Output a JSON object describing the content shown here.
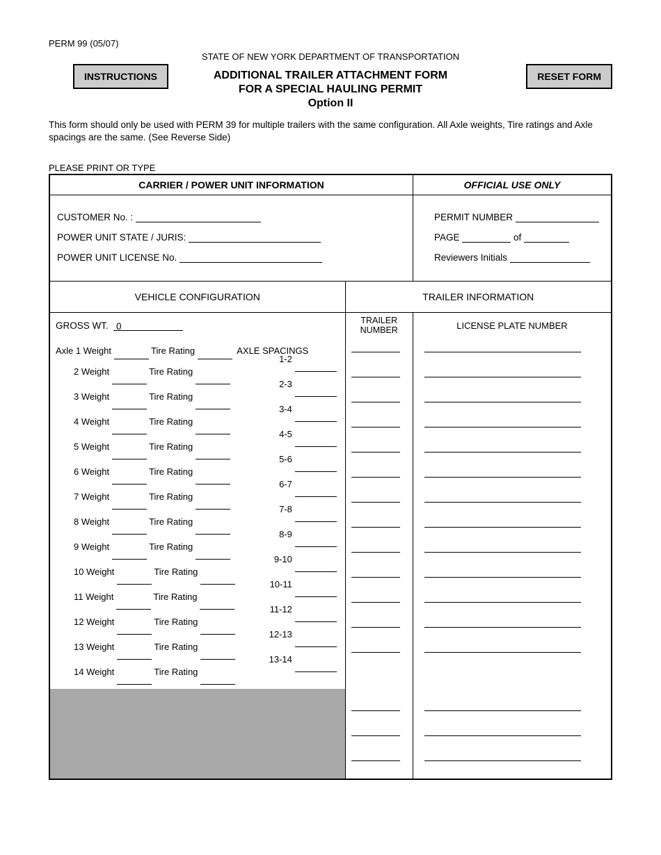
{
  "form_id": "PERM 99 (05/07)",
  "department": "STATE OF NEW YORK DEPARTMENT OF TRANSPORTATION",
  "buttons": {
    "instructions": "INSTRUCTIONS",
    "reset": "RESET FORM"
  },
  "title": {
    "line1": "ADDITIONAL TRAILER ATTACHMENT FORM",
    "line2": "FOR A SPECIAL HAULING PERMIT",
    "line3": "Option II"
  },
  "intro": "This form should only be used with PERM 39 for multiple trailers with the same configuration. All Axle weights, Tire ratings and Axle spacings are the same. (See Reverse Side)",
  "print_type": "PLEASE PRINT OR TYPE",
  "sections": {
    "carrier_header": "CARRIER / POWER UNIT INFORMATION",
    "official_header": "OFFICIAL USE ONLY",
    "vehicle_config": "VEHICLE CONFIGURATION",
    "trailer_info": "TRAILER INFORMATION",
    "trailer_number": "TRAILER NUMBER",
    "license_plate": "LICENSE PLATE NUMBER"
  },
  "carrier_fields": {
    "customer_no": "CUSTOMER No. :",
    "power_unit_state": "POWER UNIT STATE / JURIS:",
    "power_unit_license": "POWER UNIT LICENSE No."
  },
  "official_fields": {
    "permit_number": "PERMIT NUMBER",
    "page": "PAGE",
    "of": "of",
    "reviewers": "Reviewers Initials"
  },
  "gross_wt_label": "GROSS WT.",
  "gross_wt_value": "0",
  "axle_labels": {
    "axle1_prefix": "Axle 1 Weight",
    "tire_rating": "Tire Rating",
    "axle_spacings": "AXLE SPACINGS"
  },
  "axles": [
    {
      "n": "2",
      "spacing": "1-2"
    },
    {
      "n": "3",
      "spacing": "2-3"
    },
    {
      "n": "4",
      "spacing": "3-4"
    },
    {
      "n": "5",
      "spacing": "4-5"
    },
    {
      "n": "6",
      "spacing": "5-6"
    },
    {
      "n": "7",
      "spacing": "6-7"
    },
    {
      "n": "8",
      "spacing": "7-8"
    },
    {
      "n": "9",
      "spacing": "8-9"
    },
    {
      "n": "10",
      "spacing": "9-10"
    },
    {
      "n": "11",
      "spacing": "10-11"
    },
    {
      "n": "12",
      "spacing": "11-12"
    },
    {
      "n": "13",
      "spacing": "12-13"
    },
    {
      "n": "14",
      "spacing": "13-14"
    }
  ],
  "trailer_row_count": 16,
  "weight_suffix": "Weight",
  "colors": {
    "button_bg": "#cccccc",
    "gray_fill": "#a8a8a8",
    "border": "#000000",
    "text": "#000000",
    "background": "#ffffff"
  },
  "typography": {
    "body_fontsize": 13,
    "title_fontsize": 16,
    "font_family": "Arial"
  }
}
